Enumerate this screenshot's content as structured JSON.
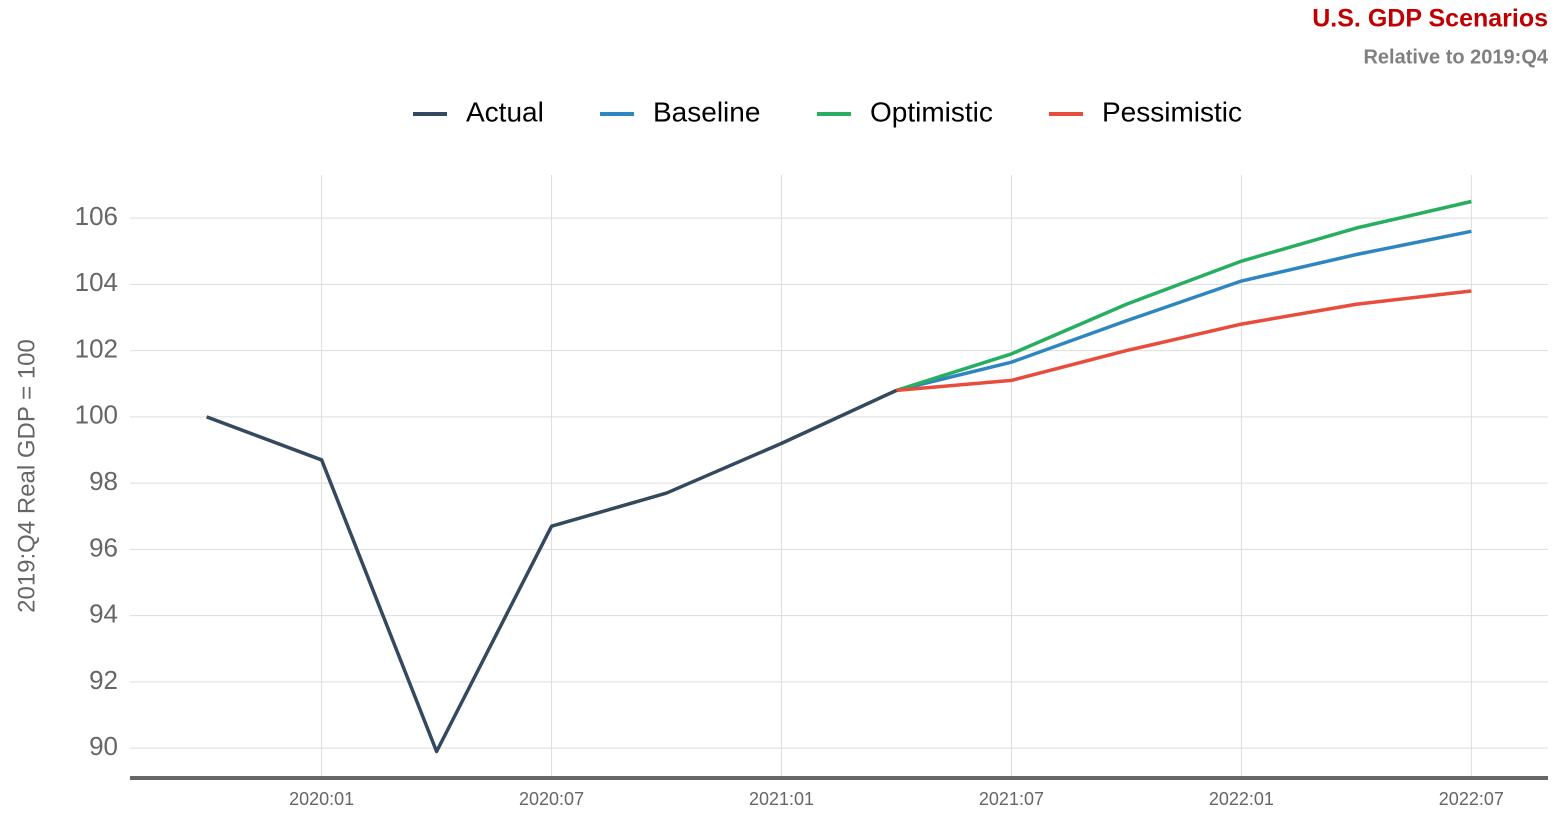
{
  "chart_data": {
    "type": "line",
    "title": "U.S. GDP Scenarios",
    "subtitle": "Relative to 2019:Q4",
    "y_label": "2019:Q4 Real GDP = 100",
    "x": [
      "2019:10",
      "2020:01",
      "2020:04",
      "2020:07",
      "2020:10",
      "2021:01",
      "2021:04",
      "2021:07",
      "2021:10",
      "2022:01",
      "2022:04",
      "2022:07"
    ],
    "series": [
      {
        "name": "Actual",
        "color": "#34495e",
        "values": [
          100,
          98.7,
          89.9,
          96.7,
          97.7,
          99.2,
          100.8,
          null,
          null,
          null,
          null,
          null
        ]
      },
      {
        "name": "Baseline",
        "color": "#2e86c1",
        "values": [
          null,
          null,
          null,
          null,
          null,
          null,
          100.8,
          101.65,
          102.9,
          104.1,
          104.9,
          105.6
        ]
      },
      {
        "name": "Optimistic",
        "color": "#27ae60",
        "values": [
          null,
          null,
          null,
          null,
          null,
          null,
          100.8,
          101.9,
          103.4,
          104.7,
          105.7,
          106.5
        ]
      },
      {
        "name": "Pessimistic",
        "color": "#e74c3c",
        "values": [
          null,
          null,
          null,
          null,
          null,
          null,
          100.8,
          101.1,
          102.0,
          102.8,
          103.4,
          103.8
        ]
      }
    ],
    "xlim": [
      "2019:08",
      "2022:09"
    ],
    "xticks": [
      "2020:01",
      "2020:07",
      "2021:01",
      "2021:07",
      "2022:01",
      "2022:07"
    ],
    "ylim": [
      89.1,
      107.3
    ],
    "yticks": [
      90,
      92,
      94,
      96,
      98,
      100,
      102,
      104,
      106
    ],
    "grid": true,
    "legend": "top"
  }
}
